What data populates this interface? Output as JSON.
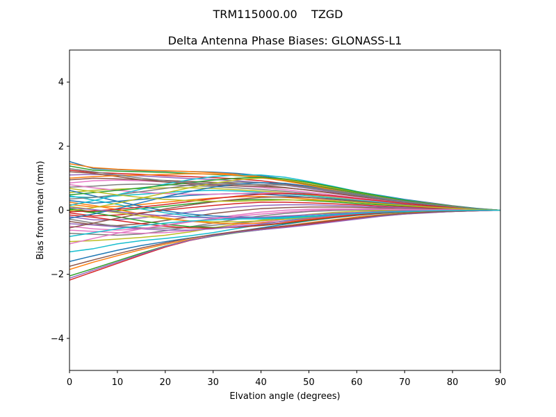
{
  "figure": {
    "suptitle": "TRM115000.00    TZGD"
  },
  "chart_data": {
    "type": "line",
    "title": "Delta Antenna Phase Biases: GLONASS-L1",
    "xlabel": "Elvation angle (degrees)",
    "ylabel": "Bias from mean (mm)",
    "xlim": [
      0,
      90
    ],
    "ylim": [
      -5,
      5
    ],
    "xticks": [
      0,
      10,
      20,
      30,
      40,
      50,
      60,
      70,
      80,
      90
    ],
    "yticks": [
      -4,
      -2,
      0,
      2,
      4
    ],
    "grid": false,
    "x": [
      0,
      5,
      10,
      15,
      20,
      25,
      30,
      35,
      40,
      45,
      50,
      55,
      60,
      65,
      70,
      75,
      80,
      85,
      90
    ],
    "palette": [
      "#1f77b4",
      "#ff7f0e",
      "#2ca02c",
      "#d62728",
      "#9467bd",
      "#8c564b",
      "#e377c2",
      "#7f7f7f",
      "#bcbd22",
      "#17becf"
    ],
    "series": [
      {
        "values": [
          1.52,
          1.3,
          1.27,
          1.24,
          1.22,
          1.21,
          1.19,
          1.15,
          1.08,
          0.97,
          0.85,
          0.72,
          0.58,
          0.46,
          0.34,
          0.24,
          0.14,
          0.06,
          0.0
        ]
      },
      {
        "values": [
          1.45,
          1.33,
          1.28,
          1.25,
          1.23,
          1.21,
          1.17,
          1.12,
          1.05,
          0.94,
          0.81,
          0.68,
          0.55,
          0.43,
          0.32,
          0.22,
          0.13,
          0.05,
          0.0
        ]
      },
      {
        "values": [
          1.38,
          1.25,
          1.22,
          1.2,
          1.18,
          1.15,
          1.12,
          1.08,
          1.02,
          0.92,
          0.8,
          0.67,
          0.54,
          0.42,
          0.31,
          0.21,
          0.12,
          0.05,
          0.0
        ]
      },
      {
        "values": [
          1.25,
          1.18,
          1.15,
          1.12,
          1.08,
          1.05,
          1.02,
          0.98,
          0.92,
          0.83,
          0.72,
          0.61,
          0.5,
          0.39,
          0.29,
          0.2,
          0.12,
          0.05,
          0.0
        ]
      },
      {
        "values": [
          1.1,
          1.12,
          1.1,
          1.07,
          1.03,
          0.99,
          0.96,
          0.92,
          0.86,
          0.78,
          0.68,
          0.57,
          0.47,
          0.37,
          0.27,
          0.19,
          0.11,
          0.04,
          0.0
        ]
      },
      {
        "values": [
          0.95,
          1.0,
          0.98,
          0.95,
          0.93,
          0.9,
          0.87,
          0.83,
          0.78,
          0.71,
          0.62,
          0.53,
          0.43,
          0.34,
          0.25,
          0.17,
          0.1,
          0.04,
          0.0
        ]
      },
      {
        "values": [
          0.85,
          0.92,
          0.94,
          0.92,
          0.88,
          0.84,
          0.8,
          0.76,
          0.71,
          0.64,
          0.56,
          0.48,
          0.39,
          0.31,
          0.23,
          0.16,
          0.09,
          0.04,
          0.0
        ]
      },
      {
        "values": [
          0.72,
          0.75,
          0.8,
          0.82,
          0.8,
          0.77,
          0.74,
          0.7,
          0.65,
          0.59,
          0.52,
          0.44,
          0.36,
          0.29,
          0.21,
          0.15,
          0.09,
          0.03,
          0.0
        ]
      },
      {
        "values": [
          0.55,
          0.62,
          0.66,
          0.68,
          0.7,
          0.7,
          0.68,
          0.64,
          0.6,
          0.55,
          0.48,
          0.41,
          0.34,
          0.27,
          0.2,
          0.14,
          0.08,
          0.03,
          0.0
        ]
      },
      {
        "values": [
          0.42,
          0.4,
          0.45,
          0.5,
          0.55,
          0.6,
          0.62,
          0.6,
          0.56,
          0.51,
          0.45,
          0.38,
          0.31,
          0.25,
          0.18,
          0.13,
          0.08,
          0.03,
          0.0
        ]
      },
      {
        "values": [
          0.3,
          0.22,
          0.28,
          0.34,
          0.4,
          0.46,
          0.5,
          0.52,
          0.5,
          0.46,
          0.4,
          0.34,
          0.28,
          0.22,
          0.17,
          0.12,
          0.07,
          0.03,
          0.0
        ]
      },
      {
        "values": [
          0.18,
          0.1,
          0.12,
          0.18,
          0.25,
          0.32,
          0.38,
          0.42,
          0.43,
          0.4,
          0.35,
          0.3,
          0.25,
          0.2,
          0.15,
          0.1,
          0.06,
          0.02,
          0.0
        ]
      },
      {
        "values": [
          0.05,
          -0.05,
          -0.02,
          0.05,
          0.12,
          0.2,
          0.27,
          0.32,
          0.34,
          0.33,
          0.3,
          0.26,
          0.21,
          0.17,
          0.13,
          0.09,
          0.05,
          0.02,
          0.0
        ]
      },
      {
        "values": [
          -0.08,
          -0.18,
          -0.15,
          -0.08,
          0.0,
          0.08,
          0.15,
          0.21,
          0.25,
          0.25,
          0.23,
          0.2,
          0.17,
          0.13,
          0.1,
          0.07,
          0.04,
          0.02,
          0.0
        ]
      },
      {
        "values": [
          -0.2,
          -0.3,
          -0.3,
          -0.24,
          -0.15,
          -0.06,
          0.03,
          0.1,
          0.15,
          0.17,
          0.17,
          0.15,
          0.13,
          0.1,
          0.08,
          0.05,
          0.03,
          0.01,
          0.0
        ]
      },
      {
        "values": [
          -0.35,
          -0.45,
          -0.48,
          -0.42,
          -0.32,
          -0.21,
          -0.1,
          -0.02,
          0.05,
          0.08,
          0.1,
          0.1,
          0.09,
          0.07,
          0.05,
          0.04,
          0.02,
          0.01,
          0.0
        ]
      },
      {
        "values": [
          -0.5,
          -0.58,
          -0.62,
          -0.58,
          -0.48,
          -0.37,
          -0.25,
          -0.15,
          -0.06,
          0.0,
          0.03,
          0.04,
          0.04,
          0.04,
          0.03,
          0.02,
          0.01,
          0.0,
          0.0
        ]
      },
      {
        "values": [
          -0.72,
          -0.75,
          -0.78,
          -0.74,
          -0.64,
          -0.52,
          -0.4,
          -0.28,
          -0.18,
          -0.1,
          -0.04,
          -0.01,
          0.01,
          0.01,
          0.01,
          0.01,
          0.0,
          0.0,
          0.0
        ]
      },
      {
        "values": [
          -0.98,
          -0.95,
          -0.9,
          -0.85,
          -0.78,
          -0.68,
          -0.55,
          -0.43,
          -0.31,
          -0.21,
          -0.13,
          -0.07,
          -0.03,
          -0.01,
          0.0,
          0.0,
          0.0,
          0.0,
          0.0
        ]
      },
      {
        "values": [
          -1.3,
          -1.2,
          -1.05,
          -0.95,
          -0.88,
          -0.8,
          -0.7,
          -0.57,
          -0.45,
          -0.33,
          -0.23,
          -0.15,
          -0.09,
          -0.05,
          -0.03,
          -0.02,
          -0.01,
          0.0,
          0.0
        ]
      },
      {
        "values": [
          -1.6,
          -1.42,
          -1.25,
          -1.1,
          -0.98,
          -0.87,
          -0.77,
          -0.66,
          -0.55,
          -0.44,
          -0.33,
          -0.24,
          -0.16,
          -0.1,
          -0.06,
          -0.03,
          -0.02,
          -0.01,
          0.0
        ]
      },
      {
        "values": [
          -1.85,
          -1.62,
          -1.42,
          -1.23,
          -1.06,
          -0.92,
          -0.8,
          -0.69,
          -0.59,
          -0.49,
          -0.39,
          -0.3,
          -0.21,
          -0.14,
          -0.09,
          -0.05,
          -0.03,
          -0.01,
          0.0
        ]
      },
      {
        "values": [
          -2.05,
          -1.82,
          -1.58,
          -1.34,
          -1.12,
          -0.94,
          -0.81,
          -0.7,
          -0.61,
          -0.53,
          -0.44,
          -0.34,
          -0.25,
          -0.17,
          -0.11,
          -0.07,
          -0.04,
          -0.02,
          0.0
        ]
      },
      {
        "values": [
          -2.18,
          -1.92,
          -1.66,
          -1.4,
          -1.15,
          -0.95,
          -0.8,
          -0.68,
          -0.59,
          -0.52,
          -0.44,
          -0.35,
          -0.26,
          -0.18,
          -0.12,
          -0.07,
          -0.04,
          -0.02,
          0.0
        ]
      },
      {
        "values": [
          -2.12,
          -1.87,
          -1.62,
          -1.37,
          -1.13,
          -0.94,
          -0.8,
          -0.69,
          -0.61,
          -0.54,
          -0.46,
          -0.37,
          -0.28,
          -0.19,
          -0.12,
          -0.08,
          -0.04,
          -0.02,
          0.0
        ]
      },
      {
        "values": [
          -1.75,
          -1.55,
          -1.36,
          -1.18,
          -1.02,
          -0.88,
          -0.76,
          -0.66,
          -0.57,
          -0.49,
          -0.41,
          -0.32,
          -0.24,
          -0.16,
          -0.1,
          -0.06,
          -0.03,
          -0.01,
          0.0
        ]
      },
      {
        "values": [
          -0.62,
          -0.66,
          -0.7,
          -0.72,
          -0.7,
          -0.64,
          -0.56,
          -0.47,
          -0.38,
          -0.29,
          -0.21,
          -0.14,
          -0.08,
          -0.04,
          -0.02,
          -0.01,
          0.0,
          0.0,
          0.0
        ]
      },
      {
        "values": [
          -0.28,
          -0.4,
          -0.5,
          -0.55,
          -0.56,
          -0.53,
          -0.47,
          -0.4,
          -0.33,
          -0.26,
          -0.19,
          -0.13,
          -0.08,
          -0.04,
          -0.02,
          -0.01,
          0.0,
          0.0,
          0.0
        ]
      },
      {
        "values": [
          0.12,
          0.02,
          -0.08,
          -0.18,
          -0.27,
          -0.33,
          -0.36,
          -0.36,
          -0.33,
          -0.28,
          -0.22,
          -0.16,
          -0.1,
          -0.06,
          -0.03,
          -0.01,
          0.0,
          0.0,
          0.0
        ]
      },
      {
        "values": [
          0.45,
          0.32,
          0.18,
          0.04,
          -0.08,
          -0.18,
          -0.24,
          -0.27,
          -0.27,
          -0.25,
          -0.2,
          -0.15,
          -0.1,
          -0.06,
          -0.03,
          -0.02,
          -0.01,
          0.0,
          0.0
        ]
      },
      {
        "values": [
          0.62,
          0.45,
          0.28,
          0.12,
          -0.02,
          -0.12,
          -0.18,
          -0.21,
          -0.22,
          -0.21,
          -0.18,
          -0.14,
          -0.1,
          -0.06,
          -0.04,
          -0.02,
          -0.01,
          0.0,
          0.0
        ]
      },
      {
        "values": [
          0.25,
          0.15,
          0.02,
          -0.12,
          -0.24,
          -0.34,
          -0.4,
          -0.42,
          -0.4,
          -0.35,
          -0.28,
          -0.2,
          -0.13,
          -0.08,
          -0.04,
          -0.02,
          -0.01,
          0.0,
          0.0
        ]
      },
      {
        "values": [
          0.02,
          -0.08,
          -0.2,
          -0.33,
          -0.44,
          -0.51,
          -0.54,
          -0.53,
          -0.48,
          -0.41,
          -0.32,
          -0.23,
          -0.15,
          -0.09,
          -0.05,
          -0.02,
          -0.01,
          0.0,
          0.0
        ]
      },
      {
        "values": [
          -0.15,
          -0.22,
          -0.32,
          -0.42,
          -0.5,
          -0.55,
          -0.56,
          -0.53,
          -0.47,
          -0.39,
          -0.3,
          -0.22,
          -0.14,
          -0.08,
          -0.04,
          -0.02,
          -0.01,
          0.0,
          0.0
        ]
      },
      {
        "values": [
          -0.42,
          -0.46,
          -0.52,
          -0.58,
          -0.62,
          -0.62,
          -0.58,
          -0.51,
          -0.43,
          -0.34,
          -0.25,
          -0.17,
          -0.11,
          -0.06,
          -0.03,
          -0.01,
          0.0,
          0.0,
          0.0
        ]
      },
      {
        "values": [
          1.2,
          1.15,
          1.05,
          0.95,
          0.88,
          0.82,
          0.78,
          0.76,
          0.74,
          0.7,
          0.63,
          0.54,
          0.44,
          0.34,
          0.25,
          0.17,
          0.1,
          0.04,
          0.0
        ]
      },
      {
        "values": [
          0.8,
          0.7,
          0.62,
          0.56,
          0.52,
          0.5,
          0.5,
          0.52,
          0.54,
          0.54,
          0.5,
          0.43,
          0.35,
          0.28,
          0.2,
          0.14,
          0.08,
          0.03,
          0.0
        ]
      },
      {
        "values": [
          0.35,
          0.4,
          0.48,
          0.58,
          0.68,
          0.78,
          0.85,
          0.88,
          0.86,
          0.8,
          0.7,
          0.59,
          0.47,
          0.36,
          0.26,
          0.18,
          0.1,
          0.04,
          0.0
        ]
      },
      {
        "values": [
          -0.02,
          0.08,
          0.22,
          0.38,
          0.54,
          0.7,
          0.84,
          0.95,
          1.0,
          0.96,
          0.85,
          0.71,
          0.57,
          0.43,
          0.31,
          0.21,
          0.12,
          0.05,
          0.0
        ]
      },
      {
        "values": [
          0.15,
          0.3,
          0.48,
          0.66,
          0.82,
          0.95,
          1.05,
          1.1,
          1.1,
          1.03,
          0.9,
          0.75,
          0.59,
          0.45,
          0.32,
          0.21,
          0.12,
          0.05,
          0.0
        ]
      },
      {
        "values": [
          -0.25,
          -0.12,
          0.05,
          0.24,
          0.42,
          0.58,
          0.72,
          0.82,
          0.86,
          0.84,
          0.75,
          0.63,
          0.5,
          0.38,
          0.27,
          0.18,
          0.1,
          0.04,
          0.0
        ]
      },
      {
        "values": [
          1.0,
          1.05,
          1.08,
          1.1,
          1.12,
          1.14,
          1.13,
          1.09,
          1.02,
          0.91,
          0.78,
          0.64,
          0.51,
          0.39,
          0.28,
          0.19,
          0.11,
          0.04,
          0.0
        ]
      },
      {
        "values": [
          0.48,
          0.55,
          0.62,
          0.7,
          0.78,
          0.86,
          0.94,
          1.0,
          1.03,
          0.98,
          0.87,
          0.73,
          0.58,
          0.44,
          0.31,
          0.21,
          0.12,
          0.05,
          0.0
        ]
      },
      {
        "values": [
          -0.05,
          -0.02,
          0.03,
          0.1,
          0.18,
          0.27,
          0.36,
          0.44,
          0.5,
          0.52,
          0.5,
          0.45,
          0.37,
          0.29,
          0.21,
          0.14,
          0.08,
          0.03,
          0.0
        ]
      },
      {
        "values": [
          0.08,
          0.02,
          -0.05,
          -0.12,
          -0.18,
          -0.22,
          -0.24,
          -0.24,
          -0.22,
          -0.18,
          -0.14,
          -0.1,
          -0.07,
          -0.04,
          -0.02,
          -0.01,
          0.0,
          0.0,
          0.0
        ]
      },
      {
        "values": [
          -0.55,
          -0.4,
          -0.25,
          -0.1,
          0.04,
          0.16,
          0.26,
          0.34,
          0.4,
          0.42,
          0.4,
          0.35,
          0.29,
          0.22,
          0.16,
          0.11,
          0.06,
          0.02,
          0.0
        ]
      },
      {
        "values": [
          -1.05,
          -0.88,
          -0.72,
          -0.58,
          -0.46,
          -0.36,
          -0.27,
          -0.19,
          -0.12,
          -0.06,
          -0.01,
          0.02,
          0.03,
          0.03,
          0.02,
          0.01,
          0.01,
          0.0,
          0.0
        ]
      },
      {
        "values": [
          1.3,
          1.2,
          1.1,
          1.0,
          0.92,
          0.86,
          0.82,
          0.8,
          0.8,
          0.78,
          0.72,
          0.62,
          0.51,
          0.39,
          0.28,
          0.19,
          0.11,
          0.04,
          0.0
        ]
      },
      {
        "values": [
          0.68,
          0.58,
          0.48,
          0.4,
          0.34,
          0.3,
          0.28,
          0.28,
          0.3,
          0.32,
          0.32,
          0.29,
          0.25,
          0.2,
          0.15,
          0.1,
          0.06,
          0.02,
          0.0
        ]
      },
      {
        "values": [
          -0.82,
          -0.7,
          -0.58,
          -0.48,
          -0.4,
          -0.34,
          -0.3,
          -0.27,
          -0.25,
          -0.22,
          -0.18,
          -0.14,
          -0.1,
          -0.06,
          -0.04,
          -0.02,
          -0.01,
          0.0,
          0.0
        ]
      }
    ]
  }
}
